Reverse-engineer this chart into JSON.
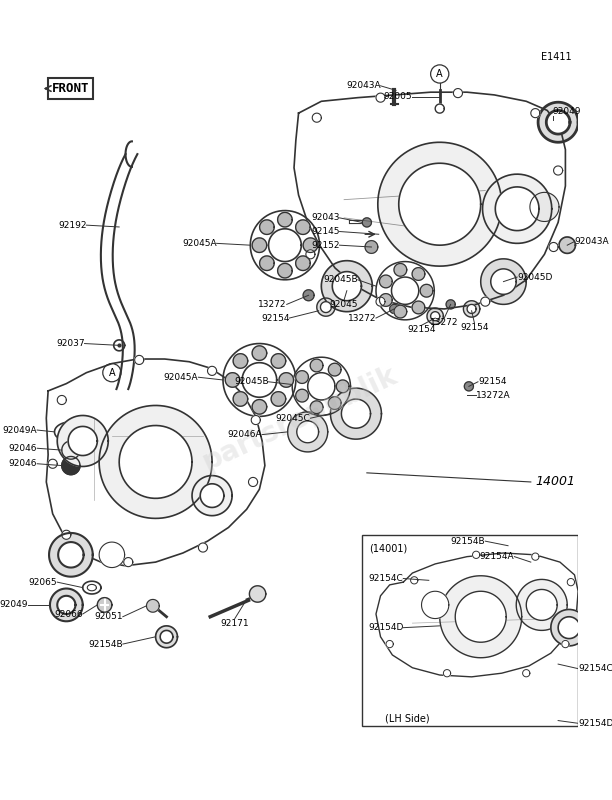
{
  "bg_color": "#ffffff",
  "line_color": "#333333",
  "text_color": "#000000",
  "watermark_text": "partsrepublik",
  "watermark_color": "#cccccc",
  "page_ref": "E1411",
  "front_label": "FRONT",
  "main_part_label": "14001",
  "inset_label": "(14001)",
  "inset_side_label": "(LH Side)",
  "label_fontsize": 6.5,
  "title_fontsize": 8
}
